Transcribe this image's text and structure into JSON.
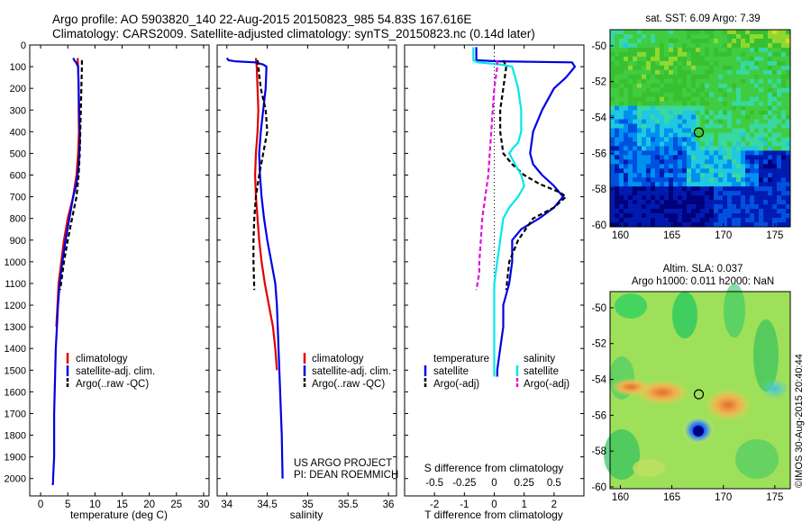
{
  "header": {
    "line1": "Argo profile: AO 5903820_140 22-Aug-2015 20150823_985 54.83S 167.616E",
    "line2": "Climatology: CARS2009. Satellite-adjusted climatology: synTS_20150823.nc (0.14d later)"
  },
  "colors": {
    "red": "#e00000",
    "blue": "#0000e6",
    "black": "#000000",
    "cyan": "#00e8e8",
    "magenta": "#e010e0"
  },
  "depth_ticks": [
    "0",
    "100",
    "200",
    "300",
    "400",
    "500",
    "600",
    "700",
    "800",
    "900",
    "1000",
    "1100",
    "1200",
    "1300",
    "1400",
    "1500",
    "1600",
    "1700",
    "1800",
    "1900",
    "2000"
  ],
  "chart_data": [
    {
      "type": "line",
      "xlabel": "temperature (deg C)",
      "xticks": [
        "0",
        "5",
        "10",
        "15",
        "20",
        "25",
        "30"
      ],
      "xlim": [
        -2,
        31
      ],
      "ylim": [
        2080,
        0
      ],
      "y_reversed": true,
      "legend": {
        "placement": "lower-middle",
        "labels": [
          "climatology",
          "satellite-adj. clim.",
          "Argo(..raw -QC)"
        ]
      },
      "series": [
        {
          "name": "climatology",
          "color": "#e00000",
          "style": "solid",
          "x": [
            6.8,
            6.9,
            7.0,
            7.0,
            7.05,
            6.9,
            6.6,
            6.0,
            5.0,
            4.3,
            3.8,
            3.3,
            3.1,
            2.9
          ],
          "y": [
            60,
            100,
            200,
            300,
            400,
            500,
            600,
            700,
            800,
            900,
            1000,
            1100,
            1200,
            1300
          ]
        },
        {
          "name": "satellite-adj. clim.",
          "color": "#0000e6",
          "style": "solid",
          "x": [
            6.0,
            6.2,
            6.5,
            6.7,
            6.9,
            7.0,
            7.1,
            7.2,
            7.2,
            7.1,
            7.0,
            6.8,
            6.5,
            6.0,
            5.3,
            4.6,
            4.0,
            3.5,
            3.2,
            3.0,
            2.8,
            2.7,
            2.6,
            2.5,
            2.5,
            2.5,
            2.4,
            2.3,
            2.3,
            2.2
          ],
          "y": [
            60,
            70,
            80,
            90,
            100,
            200,
            300,
            400,
            450,
            500,
            550,
            600,
            650,
            700,
            800,
            900,
            1000,
            1100,
            1200,
            1300,
            1400,
            1500,
            1600,
            1700,
            1800,
            1900,
            1950,
            2000,
            2020,
            2030
          ]
        },
        {
          "name": "Argo(..raw -QC)",
          "color": "#000000",
          "style": "dashed",
          "x": [
            7.6,
            7.6,
            7.5,
            7.4,
            7.3,
            7.2,
            7.0,
            6.6,
            5.8,
            5.0,
            4.3,
            3.6
          ],
          "y": [
            70,
            100,
            200,
            300,
            400,
            500,
            600,
            700,
            800,
            900,
            1000,
            1130
          ]
        }
      ],
      "annotation": ""
    },
    {
      "type": "line",
      "xlabel": "salinity",
      "xticks": [
        "34",
        "34.5",
        "35",
        "35.5",
        "36"
      ],
      "xlim": [
        33.88,
        36.1
      ],
      "ylim": [
        2080,
        0
      ],
      "y_reversed": true,
      "legend": {
        "placement": "lower-middle",
        "labels": [
          "climatology",
          "satellite-adj. clim.",
          "Argo(..raw -QC)"
        ]
      },
      "series": [
        {
          "name": "climatology",
          "color": "#e00000",
          "style": "solid",
          "x": [
            34.36,
            34.37,
            34.38,
            34.39,
            34.38,
            34.36,
            34.35,
            34.36,
            34.38,
            34.4,
            34.43,
            34.47,
            34.52,
            34.57,
            34.6,
            34.62
          ],
          "y": [
            60,
            100,
            200,
            300,
            400,
            500,
            600,
            700,
            800,
            900,
            1000,
            1100,
            1200,
            1300,
            1400,
            1500
          ]
        },
        {
          "name": "satellite-adj. clim.",
          "color": "#0000e6",
          "style": "solid",
          "x": [
            34.0,
            34.02,
            34.1,
            34.35,
            34.45,
            34.49,
            34.48,
            34.45,
            34.42,
            34.4,
            34.41,
            34.43,
            34.46,
            34.5,
            34.55,
            34.6,
            34.62,
            34.63,
            34.64,
            34.65,
            34.66,
            34.67,
            34.68,
            34.69
          ],
          "y": [
            60,
            70,
            75,
            80,
            90,
            100,
            200,
            300,
            400,
            500,
            600,
            700,
            800,
            900,
            1000,
            1100,
            1200,
            1300,
            1400,
            1500,
            1600,
            1700,
            1800,
            2000
          ]
        },
        {
          "name": "Argo(..raw -QC)",
          "color": "#000000",
          "style": "dashed",
          "x": [
            34.38,
            34.39,
            34.42,
            34.48,
            34.5,
            34.45,
            34.4,
            34.36,
            34.34,
            34.33,
            34.33,
            34.34
          ],
          "y": [
            70,
            100,
            200,
            300,
            400,
            500,
            600,
            700,
            800,
            900,
            1000,
            1130
          ]
        }
      ],
      "annotation": "US ARGO PROJECT|PI: DEAN ROEMMICH"
    },
    {
      "type": "line",
      "xlabel": "T difference from climatology",
      "xlabel_top": "S difference from climatology",
      "xticks": [
        "-2",
        "-1",
        "0",
        "1",
        "2"
      ],
      "xticks_top": [
        "-0.5",
        "-0.25",
        "0",
        "0.25",
        "0.5"
      ],
      "xlim": [
        -3.0,
        3.0
      ],
      "ylim": [
        2080,
        0
      ],
      "y_reversed": true,
      "legend": {
        "placement": "lower-middle",
        "temperature_title": "temperature",
        "salinity_title": "salinity",
        "labels": [
          "satellite",
          "Argo(-adj)",
          "satellite",
          "Argo(-adj)"
        ]
      },
      "series": [
        {
          "name": "T satellite",
          "color": "#0000e6",
          "style": "solid",
          "x": [
            -0.6,
            -0.6,
            0.1,
            2.6,
            2.7,
            2.4,
            2.0,
            1.6,
            1.3,
            1.2,
            1.3,
            1.6,
            2.0,
            2.3,
            2.0,
            1.5,
            0.9,
            0.6,
            0.6,
            0.5,
            0.3,
            0.3,
            0.2,
            0.1,
            0.1,
            0.1
          ],
          "y": [
            10,
            70,
            75,
            80,
            100,
            150,
            200,
            300,
            400,
            500,
            550,
            600,
            650,
            700,
            750,
            800,
            850,
            900,
            1000,
            1100,
            1200,
            1300,
            1400,
            1500,
            1520,
            1530
          ]
        },
        {
          "name": "T Argo(-adj)",
          "color": "#000000",
          "style": "dashed",
          "x": [
            0.3,
            0.4,
            0.3,
            0.2,
            0.2,
            0.3,
            0.6,
            1.0,
            1.5,
            2.2,
            2.4,
            2.0,
            1.3,
            0.8,
            0.5,
            0.4
          ],
          "y": [
            70,
            100,
            200,
            300,
            400,
            500,
            550,
            600,
            640,
            680,
            700,
            750,
            800,
            900,
            1000,
            1130
          ]
        },
        {
          "name": "S satellite",
          "color": "#00e8e8",
          "style": "solid",
          "x": [
            -0.7,
            -0.7,
            -0.55,
            0.2,
            0.6,
            0.7,
            0.8,
            0.9,
            0.9,
            0.8,
            0.6,
            0.5,
            0.7,
            0.9,
            1.0,
            0.8,
            0.5,
            0.3,
            0.2,
            0.1,
            0.0,
            0.0,
            0.0,
            0.0
          ],
          "y": [
            10,
            70,
            80,
            90,
            100,
            150,
            200,
            300,
            400,
            450,
            480,
            500,
            550,
            600,
            650,
            700,
            750,
            800,
            900,
            1000,
            1100,
            1200,
            1300,
            1530
          ]
        },
        {
          "name": "S Argo(-adj)",
          "color": "#e010e0",
          "style": "dashed",
          "x": [
            0.1,
            0.1,
            0.0,
            -0.05,
            -0.1,
            -0.15,
            -0.2,
            -0.3,
            -0.4,
            -0.45,
            -0.5,
            -0.5,
            -0.6
          ],
          "y": [
            70,
            100,
            200,
            300,
            400,
            500,
            600,
            700,
            800,
            900,
            1000,
            1050,
            1130
          ]
        }
      ],
      "annotation": ""
    },
    {
      "type": "heatmap",
      "title": "sat. SST: 6.09 Argo: 7.39",
      "xticks": [
        "160",
        "165",
        "170",
        "175"
      ],
      "yticks": [
        "-50",
        "-52",
        "-54",
        "-56",
        "-58",
        "-60"
      ],
      "xlim": [
        159,
        176.5
      ],
      "ylim": [
        -60.1,
        -49.1
      ],
      "marker": {
        "lon": 167.616,
        "lat": -54.83
      }
    },
    {
      "type": "heatmap",
      "title": "Altim. SLA: 0.037",
      "title2": "Argo h1000: 0.011 h2000: NaN",
      "xticks": [
        "160",
        "165",
        "170",
        "175"
      ],
      "yticks": [
        "-50",
        "-52",
        "-54",
        "-56",
        "-58",
        "-60"
      ],
      "xlim": [
        159,
        176.5
      ],
      "ylim": [
        -60.1,
        -49.1
      ],
      "marker": {
        "lon": 167.616,
        "lat": -54.83
      },
      "side_label": "©IMOS 30-Aug-2015 20:40:44"
    }
  ]
}
